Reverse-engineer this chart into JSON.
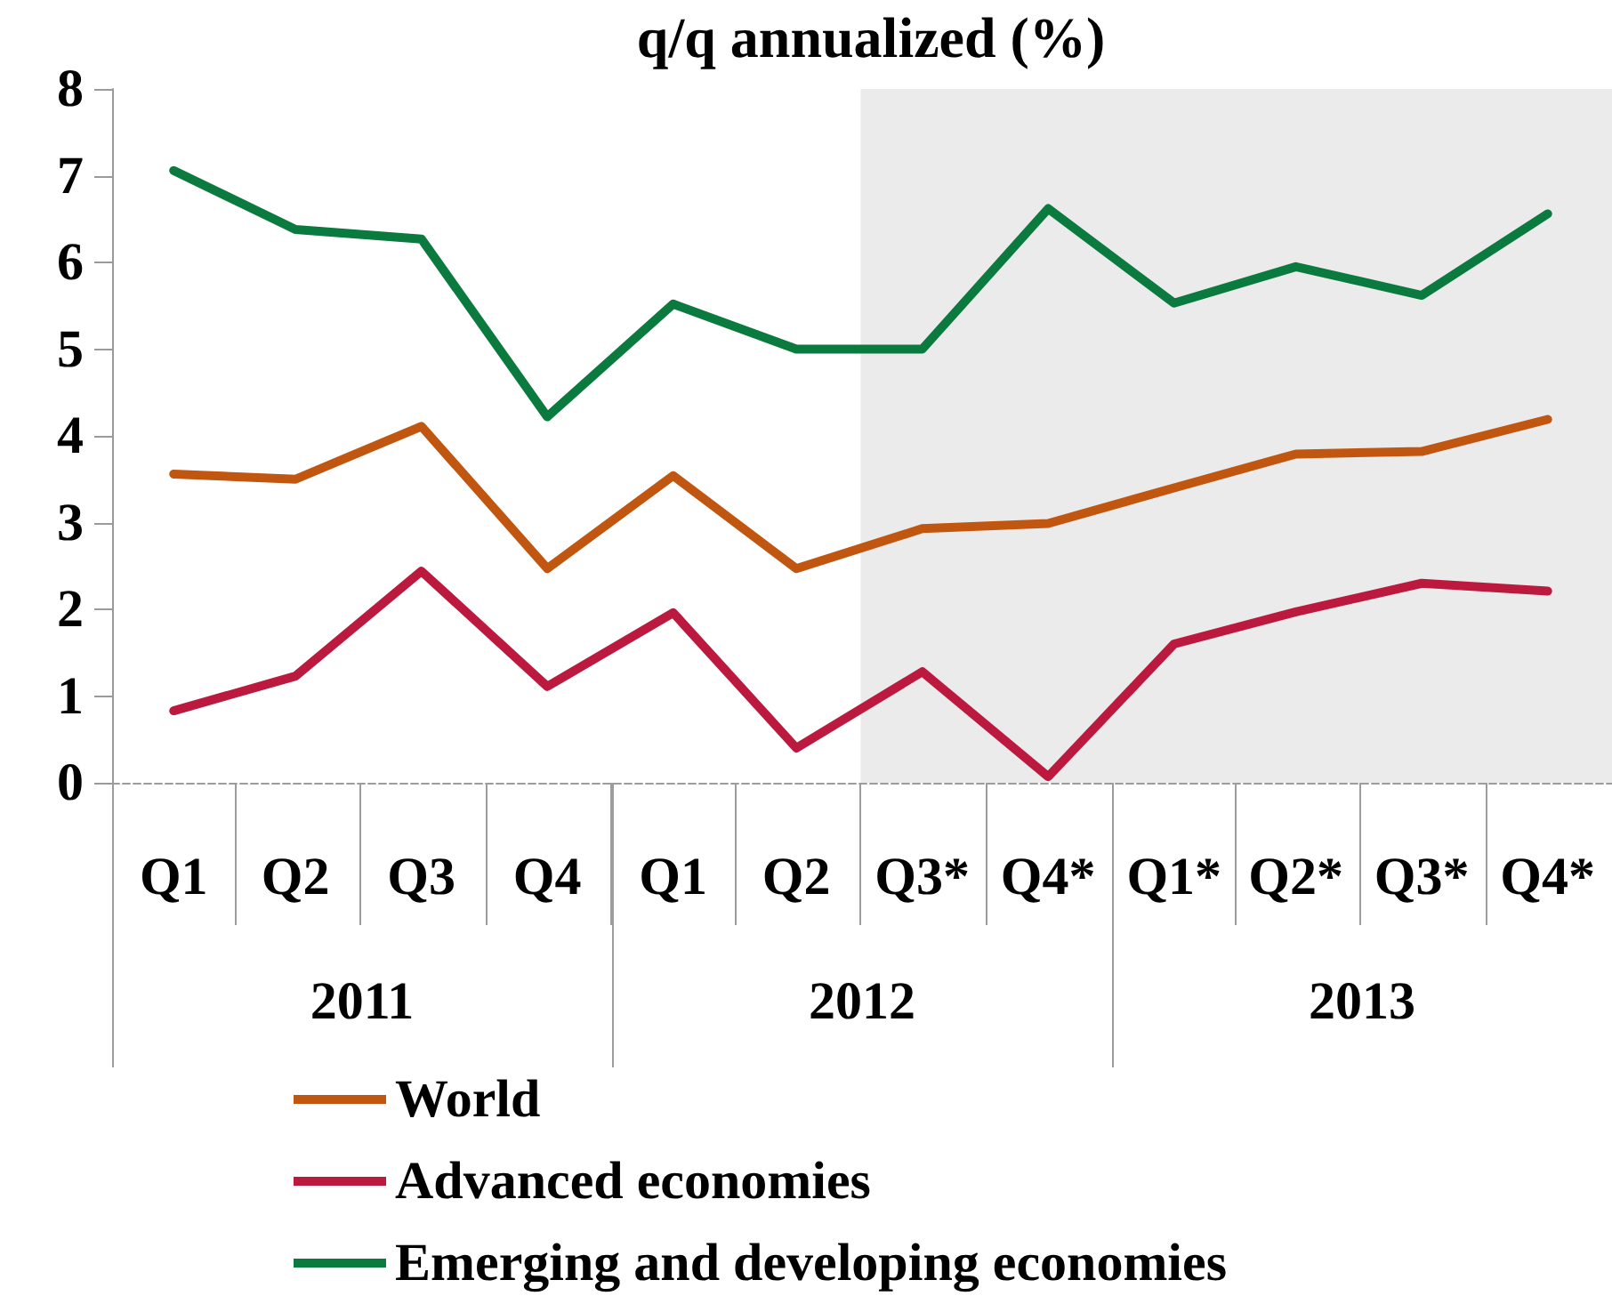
{
  "chart_data": {
    "type": "line",
    "title": "q/q annualized (%)",
    "x": [
      "2011-02-15",
      "2011-05-15",
      "2011-08-15",
      "2011-11-15",
      "2012-02-15",
      "2012-05-15",
      "2012-08-15",
      "2012-11-15",
      "2013-02-15",
      "2013-05-15",
      "2013-08-15",
      "2013-11-15"
    ],
    "annotations": [
      "2011",
      "2012",
      "2013"
    ],
    "series": [
      {
        "name": "World",
        "color": "#c0560f",
        "values": [
          3.56,
          3.5,
          4.11,
          2.47,
          3.54,
          2.47,
          2.93,
          2.99,
          3.4,
          3.79,
          3.82,
          4.19
        ]
      },
      {
        "name": "Advanced economies",
        "color": "#bb1a3e",
        "values": [
          0.83,
          1.23,
          2.44,
          1.11,
          1.96,
          0.4,
          1.28,
          0.07,
          1.6,
          1.97,
          2.3,
          2.21
        ]
      },
      {
        "name": "Emerging and developing economies",
        "color": "#0b7a3e",
        "values": [
          7.06,
          6.38,
          6.27,
          4.22,
          5.52,
          5.0,
          5.0,
          6.62,
          5.53,
          5.95,
          5.62,
          6.56
        ]
      }
    ],
    "xlim": [
      "2011-01-01",
      "2014-01-01"
    ],
    "xticks": [
      {
        "value": "2011-01-01",
        "label": null
      },
      {
        "value": "2011-02-15",
        "label": "Q1"
      },
      {
        "value": "2011-04-01",
        "label": null
      },
      {
        "value": "2011-05-15",
        "label": "Q2"
      },
      {
        "value": "2011-07-01",
        "label": null
      },
      {
        "value": "2011-08-15",
        "label": "Q3"
      },
      {
        "value": "2011-10-01",
        "label": null
      },
      {
        "value": "2011-11-15",
        "label": "Q4"
      },
      {
        "value": "2012-01-01",
        "label": null
      },
      {
        "value": "2012-02-15",
        "label": "Q1"
      },
      {
        "value": "2012-04-01",
        "label": null
      },
      {
        "value": "2012-05-15",
        "label": "Q2"
      },
      {
        "value": "2012-07-01",
        "label": null
      },
      {
        "value": "2012-08-15",
        "label": "Q3*"
      },
      {
        "value": "2012-10-01",
        "label": null
      },
      {
        "value": "2012-11-15",
        "label": "Q4*"
      },
      {
        "value": "2013-01-01",
        "label": null
      },
      {
        "value": "2013-02-15",
        "label": "Q1*"
      },
      {
        "value": "2013-04-01",
        "label": null
      },
      {
        "value": "2013-05-15",
        "label": "Q2*"
      },
      {
        "value": "2013-07-01",
        "label": null
      },
      {
        "value": "2013-08-15",
        "label": "Q3*"
      },
      {
        "value": "2013-10-01",
        "label": null
      },
      {
        "value": "2013-11-15",
        "label": "Q4*"
      },
      {
        "value": "2014-01-01",
        "label": null
      }
    ],
    "ylim": [
      0,
      8
    ],
    "yticks": [
      0,
      1,
      2,
      3,
      4,
      5,
      6,
      7,
      8
    ],
    "bands": [
      {
        "axis": "x",
        "from": "2012-07-01",
        "to": "2014-01-01",
        "color": "#ebebeb"
      }
    ],
    "grid": false,
    "legend": "bottom left",
    "marker": "none",
    "line_style": "solid"
  }
}
